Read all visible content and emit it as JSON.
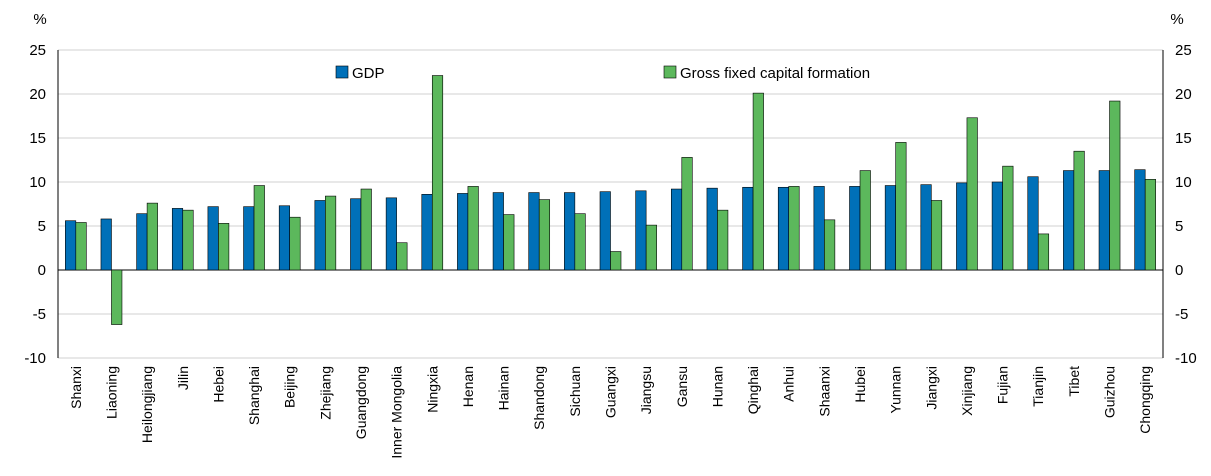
{
  "chart_data": {
    "type": "bar",
    "y_unit_left": "%",
    "y_unit_right": "%",
    "ylim": [
      -10,
      25
    ],
    "yticks": [
      25,
      20,
      15,
      10,
      5,
      0,
      -5,
      -10
    ],
    "grid": true,
    "legend_placement": "top",
    "categories": [
      "Shanxi",
      "Liaoning",
      "Heilongjiang",
      "Jilin",
      "Hebei",
      "Shanghai",
      "Beijing",
      "Zhejiang",
      "Guangdong",
      "Inner Mongolia",
      "Ningxia",
      "Henan",
      "Hainan",
      "Shandong",
      "Sichuan",
      "Guangxi",
      "Jiangsu",
      "Gansu",
      "Hunan",
      "Qinghai",
      "Anhui",
      "Shaanxi",
      "Hubei",
      "Yunnan",
      "Jiangxi",
      "Xinjiang",
      "Fujian",
      "Tianjin",
      "Tibet",
      "Guizhou",
      "Chongqing"
    ],
    "series": [
      {
        "name": "GDP",
        "color": "#0070B8",
        "values": [
          5.6,
          5.8,
          6.4,
          7.0,
          7.2,
          7.2,
          7.3,
          7.9,
          8.1,
          8.2,
          8.6,
          8.7,
          8.8,
          8.8,
          8.8,
          8.9,
          9.0,
          9.2,
          9.3,
          9.4,
          9.4,
          9.5,
          9.5,
          9.6,
          9.7,
          9.9,
          10.0,
          10.6,
          11.3,
          11.3,
          11.4
        ]
      },
      {
        "name": "Gross fixed capital formation",
        "color": "#5CB85C",
        "values": [
          5.4,
          -6.2,
          7.6,
          6.8,
          5.3,
          9.6,
          6.0,
          8.4,
          9.2,
          3.1,
          22.1,
          9.5,
          6.3,
          8.0,
          6.4,
          2.1,
          5.1,
          12.8,
          6.8,
          20.1,
          9.5,
          5.7,
          11.3,
          14.5,
          7.9,
          17.3,
          11.8,
          4.1,
          13.5,
          19.2,
          10.3
        ]
      }
    ]
  }
}
